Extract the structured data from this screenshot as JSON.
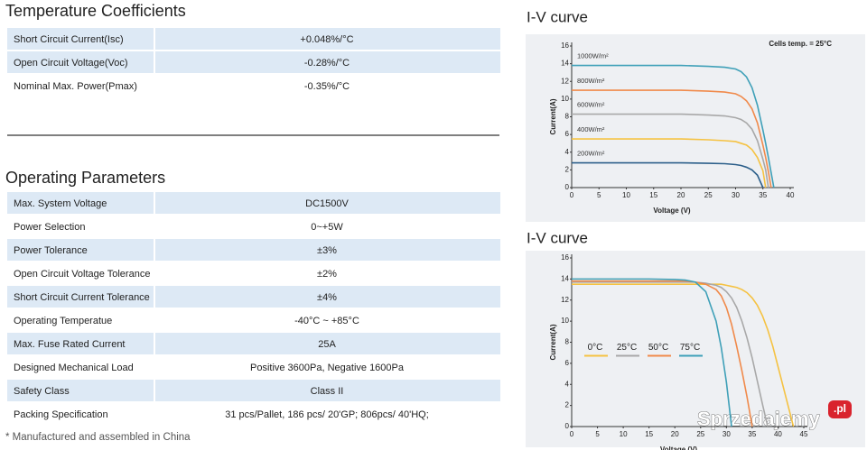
{
  "temperature_coefficients": {
    "title": "Temperature Coefficients",
    "rows": [
      [
        "Short Circuit Current(Isc)",
        "+0.048%/°C"
      ],
      [
        "Open Circuit Voltage(Voc)",
        "-0.28%/°C"
      ],
      [
        "Nominal Max. Power(Pmax)",
        "-0.35%/°C"
      ]
    ]
  },
  "operating_parameters": {
    "title": "Operating Parameters",
    "rows": [
      [
        "Max. System Voltage",
        "DC1500V"
      ],
      [
        "Power Selection",
        "0~+5W"
      ],
      [
        "Power Tolerance",
        "±3%"
      ],
      [
        "Open Circuit Voltage Tolerance",
        "±2%"
      ],
      [
        "Short Circuit Current Tolerance",
        "±4%"
      ],
      [
        "Operating Temperatue",
        "-40°C ~ +85°C"
      ],
      [
        "Max. Fuse Rated Current",
        "25A"
      ],
      [
        "Designed Mechanical Load",
        "Positive 3600Pa, Negative 1600Pa"
      ],
      [
        "Safety Class",
        "Class II"
      ],
      [
        "Packing Specification",
        "31 pcs/Pallet, 186 pcs/ 20'GP; 806pcs/ 40'HQ;"
      ]
    ]
  },
  "footnote": "* Manufactured and assembled in China",
  "watermark": "Sprzedajemy",
  "watermark_badge": ".pl",
  "chart_data": [
    {
      "type": "line",
      "title": "I-V curve",
      "annotation": "Cells temp. = 25°C",
      "x_label": "Voltage  (V)",
      "y_label": "Current(A)",
      "xlim": [
        0,
        40
      ],
      "xticks": [
        0,
        5,
        10,
        15,
        20,
        25,
        30,
        35,
        40
      ],
      "ylim": [
        0,
        16
      ],
      "yticks": [
        0,
        2,
        4,
        6,
        8,
        10,
        12,
        14,
        16
      ],
      "legend": "inline",
      "x": [
        0,
        5,
        10,
        15,
        20,
        25,
        28,
        30,
        31,
        32,
        33,
        34,
        35,
        35.5,
        36,
        36.5,
        37
      ],
      "series": [
        {
          "name": "1000W/m²",
          "color": "#3fa0b8",
          "values": [
            13.8,
            13.8,
            13.8,
            13.8,
            13.8,
            13.7,
            13.6,
            13.4,
            13.1,
            12.5,
            11.3,
            9.3,
            6.5,
            5,
            3.4,
            1.7,
            0
          ]
        },
        {
          "name": "800W/m²",
          "color": "#f08a4b",
          "values": [
            11,
            11,
            11,
            11,
            11,
            10.9,
            10.8,
            10.6,
            10.3,
            9.8,
            8.9,
            7.3,
            4.8,
            3.4,
            1.8,
            0,
            null
          ]
        },
        {
          "name": "600W/m²",
          "color": "#a8a8a8",
          "values": [
            8.3,
            8.3,
            8.3,
            8.3,
            8.3,
            8.2,
            8.1,
            7.9,
            7.7,
            7.3,
            6.6,
            5.3,
            3.2,
            2,
            0,
            null,
            null
          ]
        },
        {
          "name": "400W/m²",
          "color": "#f5c242",
          "values": [
            5.5,
            5.5,
            5.5,
            5.5,
            5.5,
            5.4,
            5.3,
            5.2,
            5,
            4.8,
            4.3,
            3.4,
            1.9,
            0,
            null,
            null,
            null
          ]
        },
        {
          "name": "200W/m²",
          "color": "#2c5f8a",
          "values": [
            2.8,
            2.8,
            2.8,
            2.8,
            2.8,
            2.75,
            2.7,
            2.6,
            2.5,
            2.3,
            2,
            1.4,
            0,
            null,
            null,
            null,
            null
          ]
        }
      ]
    },
    {
      "type": "line",
      "title": "I-V curve",
      "x_label": "Voltage  (V)",
      "y_label": "Current(A)",
      "xlim": [
        0,
        45
      ],
      "xticks": [
        0,
        5,
        10,
        15,
        20,
        25,
        30,
        35,
        40,
        45
      ],
      "ylim": [
        0,
        16
      ],
      "yticks": [
        0,
        2,
        4,
        6,
        8,
        10,
        12,
        14,
        16
      ],
      "legend": "center-left",
      "x": [
        0,
        5,
        10,
        15,
        20,
        22,
        24,
        26,
        28,
        29,
        30,
        31,
        32,
        33,
        34,
        35,
        36,
        37,
        38,
        39,
        40,
        41,
        42,
        43
      ],
      "series": [
        {
          "name": "0°C",
          "color": "#f5c242",
          "values": [
            13.5,
            13.5,
            13.5,
            13.5,
            13.5,
            13.5,
            13.5,
            13.5,
            13.5,
            13.5,
            13.4,
            13.3,
            13.2,
            13,
            12.7,
            12.2,
            11.5,
            10.5,
            9.2,
            7.6,
            5.7,
            3.8,
            1.9,
            0
          ]
        },
        {
          "name": "25°C",
          "color": "#a8a8a8",
          "values": [
            13.7,
            13.7,
            13.7,
            13.7,
            13.7,
            13.7,
            13.7,
            13.6,
            13.4,
            13.2,
            12.8,
            12.2,
            11.3,
            10,
            8.4,
            6.5,
            4.3,
            2.1,
            0,
            null,
            null,
            null,
            null,
            null
          ]
        },
        {
          "name": "50°C",
          "color": "#f08a4b",
          "values": [
            13.8,
            13.8,
            13.8,
            13.8,
            13.8,
            13.8,
            13.7,
            13.5,
            13,
            12.4,
            11.3,
            9.7,
            7.6,
            5.3,
            2.8,
            0,
            null,
            null,
            null,
            null,
            null,
            null,
            null,
            null
          ]
        },
        {
          "name": "75°C",
          "color": "#3fa0b8",
          "values": [
            14,
            14,
            14,
            14,
            13.95,
            13.9,
            13.7,
            12.8,
            10,
            7.5,
            4.2,
            0,
            null,
            null,
            null,
            null,
            null,
            null,
            null,
            null,
            null,
            null,
            null,
            null
          ]
        }
      ]
    }
  ]
}
